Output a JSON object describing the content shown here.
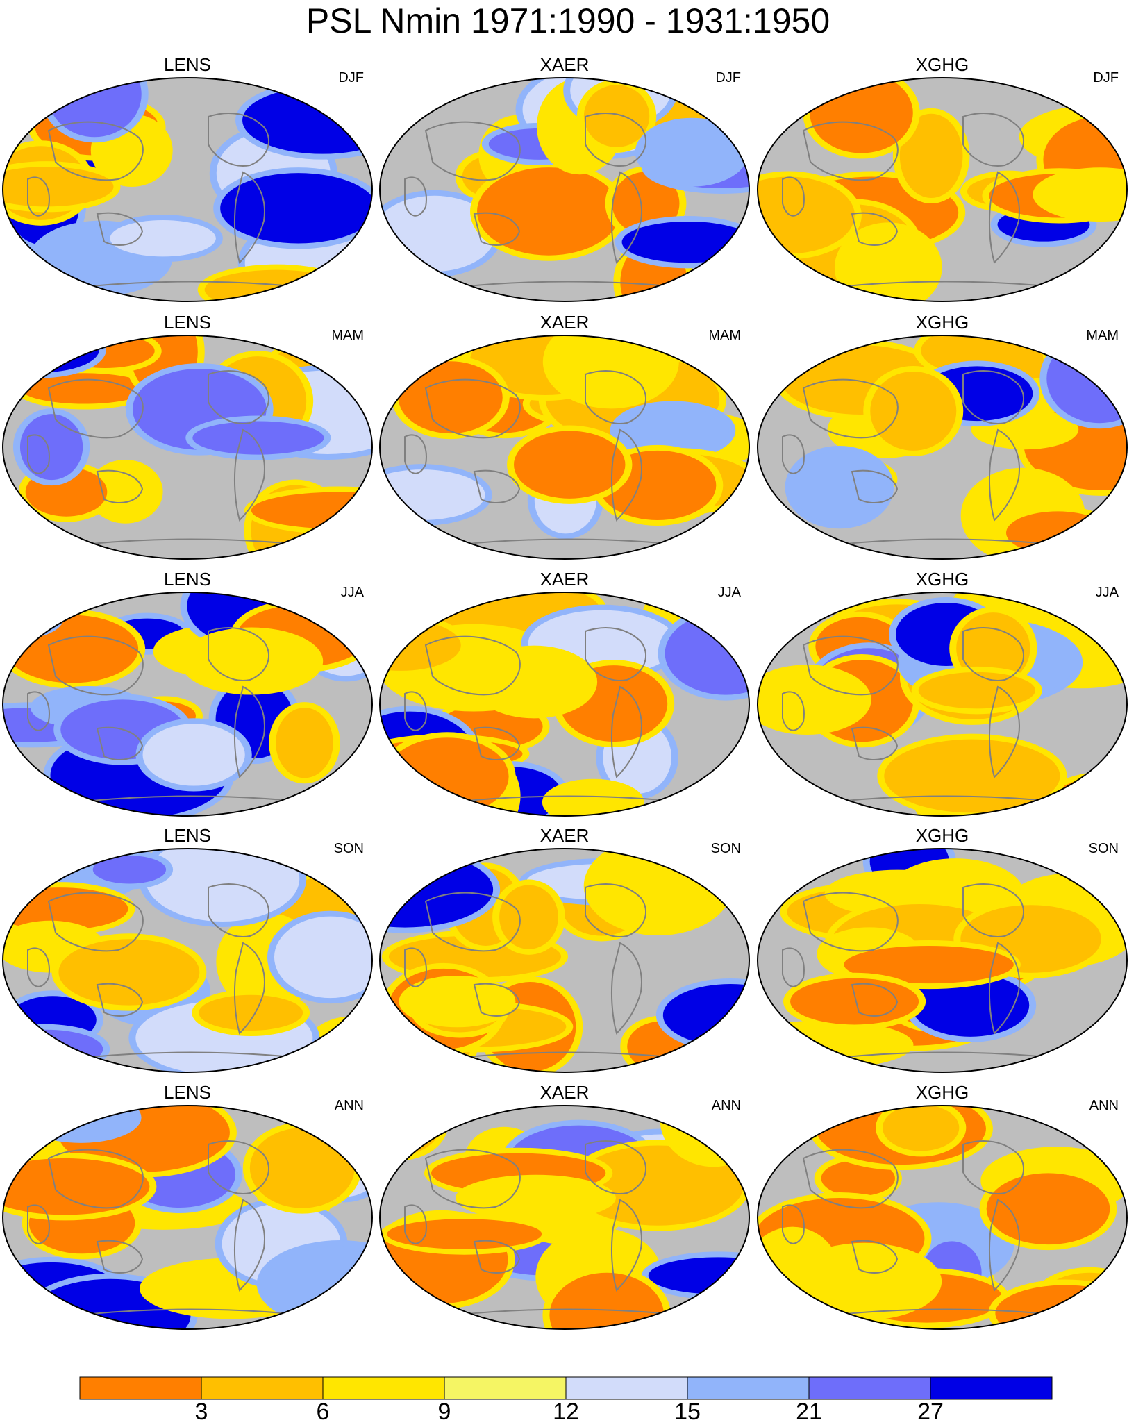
{
  "title": "PSL Nmin 1971:1990 - 1931:1950",
  "columns": [
    "LENS",
    "XAER",
    "XGHG"
  ],
  "rows": [
    "DJF",
    "MAM",
    "JJA",
    "SON",
    "ANN"
  ],
  "colors": {
    "land_masked": "#bebebe",
    "coastline": "#808080",
    "border": "#000000"
  },
  "colorbar": {
    "colors": [
      "#ff7f00",
      "#ffbf00",
      "#ffe600",
      "#f5f564",
      "#d2dcfa",
      "#91b4fa",
      "#6e6efa",
      "#0000e6"
    ],
    "labels": [
      "3",
      "6",
      "9",
      "12",
      "15",
      "21",
      "27"
    ]
  }
}
